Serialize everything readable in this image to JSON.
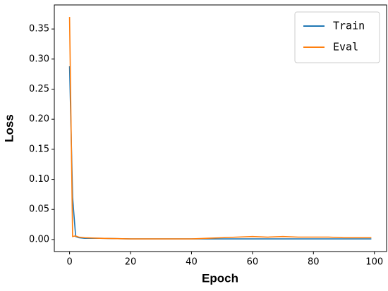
{
  "chart_data": {
    "type": "line",
    "x_label": "Epoch",
    "y_label": "Loss",
    "x": [
      0,
      1,
      2,
      3,
      5,
      10,
      20,
      30,
      40,
      45,
      50,
      55,
      60,
      65,
      70,
      75,
      80,
      85,
      90,
      95,
      99
    ],
    "series": [
      {
        "name": "Train",
        "color": "#1f77b4",
        "values": [
          0.288,
          0.07,
          0.005,
          0.003,
          0.002,
          0.002,
          0.001,
          0.001,
          0.001,
          0.001,
          0.001,
          0.001,
          0.001,
          0.001,
          0.001,
          0.001,
          0.001,
          0.001,
          0.001,
          0.001,
          0.001
        ]
      },
      {
        "name": "Eval",
        "color": "#ff7f0e",
        "values": [
          0.37,
          0.005,
          0.006,
          0.004,
          0.003,
          0.002,
          0.001,
          0.001,
          0.001,
          0.002,
          0.003,
          0.004,
          0.005,
          0.004,
          0.005,
          0.004,
          0.004,
          0.004,
          0.003,
          0.003,
          0.003
        ]
      }
    ],
    "xlim": [
      -5,
      104
    ],
    "ylim": [
      -0.02,
      0.39
    ],
    "xticks": [
      0,
      20,
      40,
      60,
      80,
      100
    ],
    "yticks": [
      {
        "value": 0,
        "label": "0.00"
      },
      {
        "value": 0.05,
        "label": "0.05"
      },
      {
        "value": 0.1,
        "label": "0.10"
      },
      {
        "value": 0.15,
        "label": "0.15"
      },
      {
        "value": 0.2,
        "label": "0.20"
      },
      {
        "value": 0.25,
        "label": "0.25"
      },
      {
        "value": 0.3,
        "label": "0.30"
      },
      {
        "value": 0.35,
        "label": "0.35"
      }
    ],
    "legend": "upper right",
    "grid": false
  }
}
